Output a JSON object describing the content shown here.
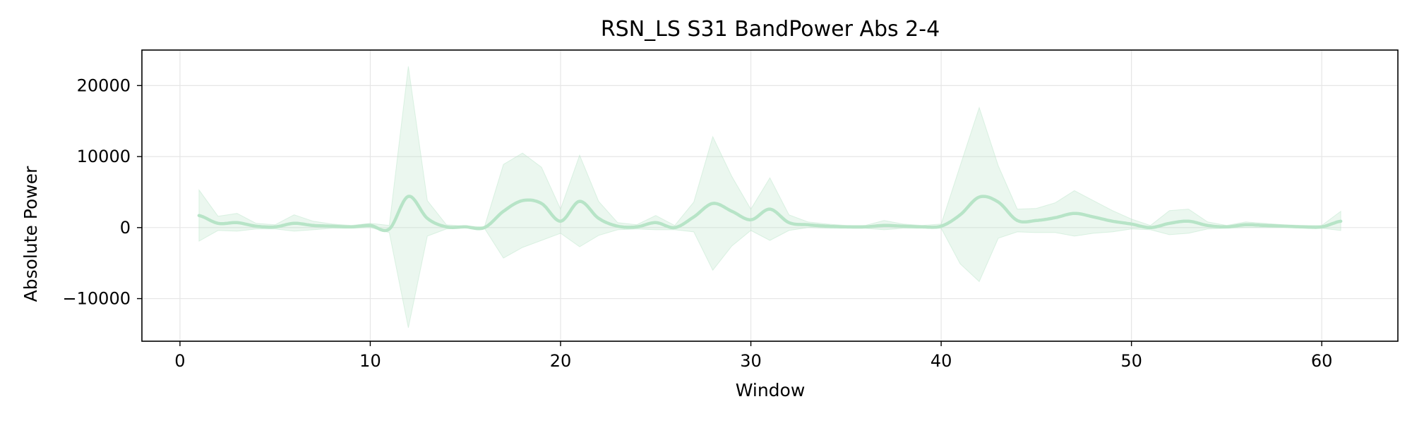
{
  "chart_data": {
    "type": "line",
    "title": "RSN_LS S31 BandPower Abs 2-4",
    "xlabel": "Window",
    "ylabel": "Absolute Power",
    "xlim": [
      -2,
      64
    ],
    "ylim": [
      -16000,
      25000
    ],
    "xticks": [
      0,
      10,
      20,
      30,
      40,
      50,
      60
    ],
    "yticks": [
      -10000,
      0,
      10000,
      20000
    ],
    "ytick_labels": [
      "−10000",
      "0",
      "10000",
      "20000"
    ],
    "grid": true,
    "line_color": "#b7e4c7",
    "band_color": "#b7e4c7",
    "series": [
      {
        "x": [
          1,
          2,
          3,
          4,
          5,
          6,
          7,
          8,
          9,
          10,
          11,
          12,
          13,
          14,
          15,
          16,
          17,
          18,
          19,
          20,
          21,
          22,
          23,
          24,
          25,
          26,
          27,
          28,
          29,
          30,
          31,
          32,
          33,
          34,
          35,
          36,
          37,
          38,
          39,
          40,
          41,
          42,
          43,
          44,
          45,
          46,
          47,
          48,
          49,
          50,
          51,
          52,
          53,
          54,
          55,
          56,
          57,
          58,
          59,
          60,
          61
        ],
        "values": [
          1700,
          600,
          700,
          200,
          100,
          600,
          300,
          200,
          100,
          300,
          -200,
          4400,
          1300,
          100,
          100,
          0,
          2300,
          3800,
          3400,
          900,
          3700,
          1300,
          200,
          100,
          700,
          0,
          1500,
          3400,
          2300,
          1100,
          2600,
          700,
          400,
          200,
          100,
          100,
          300,
          200,
          100,
          200,
          1800,
          4300,
          3600,
          1000,
          1000,
          1400,
          2000,
          1500,
          900,
          500,
          0,
          600,
          900,
          300,
          100,
          400,
          300,
          200,
          100,
          100,
          900
        ],
        "upper": [
          5300,
          1600,
          2000,
          600,
          400,
          1800,
          900,
          500,
          300,
          600,
          300,
          22700,
          3800,
          400,
          200,
          100,
          8900,
          10500,
          8500,
          2600,
          10200,
          3700,
          700,
          400,
          1700,
          300,
          3600,
          12800,
          7200,
          2600,
          7000,
          1800,
          800,
          500,
          300,
          300,
          1000,
          500,
          300,
          500,
          8700,
          16900,
          8700,
          2600,
          2700,
          3500,
          5200,
          3800,
          2400,
          1200,
          300,
          2400,
          2600,
          800,
          300,
          800,
          600,
          400,
          300,
          300,
          2300
        ],
        "lower": [
          -1900,
          -400,
          -500,
          -200,
          -200,
          -500,
          -300,
          -100,
          -100,
          0,
          -700,
          -14100,
          -1200,
          -200,
          0,
          -100,
          -4300,
          -2800,
          -1800,
          -800,
          -2700,
          -1100,
          -300,
          -200,
          -300,
          -300,
          -600,
          -6000,
          -2600,
          -400,
          -1800,
          -400,
          0,
          -100,
          -100,
          -100,
          -300,
          -100,
          -100,
          -100,
          -5100,
          -7600,
          -1500,
          -600,
          -700,
          -700,
          -1200,
          -800,
          -600,
          -200,
          -300,
          -1000,
          -800,
          -200,
          -100,
          0,
          0,
          0,
          -100,
          -100,
          -400
        ]
      }
    ]
  }
}
